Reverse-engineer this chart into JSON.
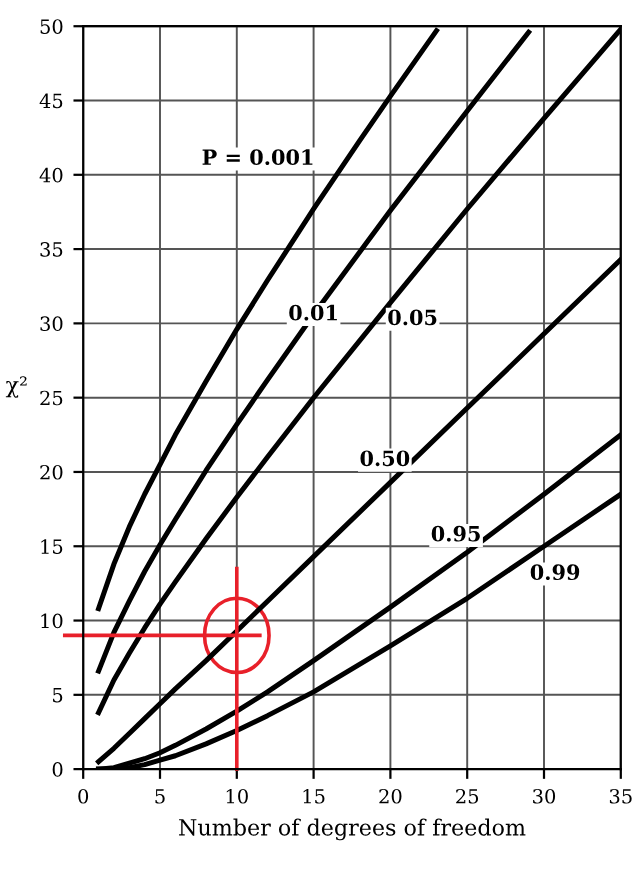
{
  "chart_data": {
    "type": "line",
    "xlabel": "Number of degrees of freedom",
    "ylabel": "χ²",
    "xlim": [
      0,
      35
    ],
    "ylim": [
      0,
      50
    ],
    "xticks": [
      0,
      5,
      10,
      15,
      20,
      25,
      30,
      35
    ],
    "yticks": [
      0,
      5,
      10,
      15,
      20,
      25,
      30,
      35,
      40,
      45,
      50
    ],
    "grid": true,
    "marker": "none",
    "line_style": "solid",
    "series": [
      {
        "name": "P = 0.001",
        "color": "#000000",
        "x": [
          1,
          2,
          3,
          4,
          5,
          6,
          8,
          10,
          12,
          15,
          18,
          20,
          23
        ],
        "values": [
          10.8,
          13.8,
          16.3,
          18.5,
          20.5,
          22.5,
          26.1,
          29.6,
          32.9,
          37.7,
          42.3,
          45.3,
          49.7
        ]
      },
      {
        "name": "0.01",
        "color": "#000000",
        "x": [
          1,
          2,
          3,
          4,
          5,
          6,
          8,
          10,
          12,
          15,
          20,
          25,
          29
        ],
        "values": [
          6.6,
          9.2,
          11.3,
          13.3,
          15.1,
          16.8,
          20.1,
          23.2,
          26.2,
          30.6,
          37.6,
          44.3,
          49.6
        ]
      },
      {
        "name": "0.05",
        "color": "#000000",
        "x": [
          1,
          2,
          3,
          4,
          5,
          6,
          8,
          10,
          12,
          15,
          20,
          25,
          30,
          35
        ],
        "values": [
          3.8,
          6.0,
          7.8,
          9.5,
          11.1,
          12.6,
          15.5,
          18.3,
          21.0,
          25.0,
          31.4,
          37.7,
          43.8,
          49.8
        ]
      },
      {
        "name": "0.50",
        "color": "#000000",
        "x": [
          1,
          2,
          3,
          4,
          5,
          6,
          8,
          10,
          12,
          15,
          20,
          25,
          30,
          35
        ],
        "values": [
          0.5,
          1.4,
          2.4,
          3.4,
          4.4,
          5.4,
          7.3,
          9.3,
          11.3,
          14.3,
          19.3,
          24.3,
          29.3,
          34.3
        ]
      },
      {
        "name": "0.95",
        "color": "#000000",
        "x": [
          1,
          2,
          3,
          4,
          5,
          6,
          8,
          10,
          12,
          15,
          20,
          25,
          30,
          35
        ],
        "values": [
          0.0,
          0.1,
          0.4,
          0.7,
          1.1,
          1.6,
          2.7,
          3.9,
          5.2,
          7.3,
          10.9,
          14.6,
          18.5,
          22.5
        ]
      },
      {
        "name": "0.99",
        "color": "#000000",
        "x": [
          1,
          2,
          3,
          4,
          5,
          6,
          8,
          10,
          12,
          15,
          20,
          25,
          30,
          35
        ],
        "values": [
          0.0,
          0.0,
          0.1,
          0.3,
          0.6,
          0.9,
          1.7,
          2.6,
          3.6,
          5.2,
          8.3,
          11.5,
          15.0,
          18.5
        ]
      }
    ],
    "ref_lines": [
      {
        "axis": "x",
        "value": 10,
        "color": "#e8202a"
      },
      {
        "axis": "y",
        "value": 9,
        "color": "#e8202a"
      }
    ]
  }
}
